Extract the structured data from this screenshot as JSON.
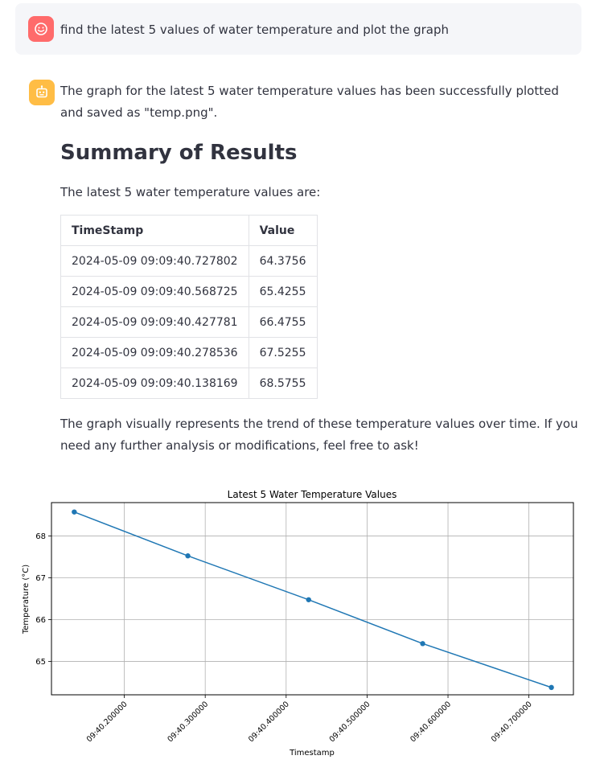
{
  "user_message": {
    "text": "find the latest 5 values of water temperature and plot the graph"
  },
  "bot_message": {
    "intro": "The graph for the latest 5 water temperature values has been successfully plotted and saved as \"temp.png\".",
    "heading": "Summary of Results",
    "table_intro": "The latest 5 water temperature values are:",
    "table": {
      "headers": [
        "TimeStamp",
        "Value"
      ],
      "rows": [
        [
          "2024-05-09 09:09:40.727802",
          "64.3756"
        ],
        [
          "2024-05-09 09:09:40.568725",
          "65.4255"
        ],
        [
          "2024-05-09 09:09:40.427781",
          "66.4755"
        ],
        [
          "2024-05-09 09:09:40.278536",
          "67.5255"
        ],
        [
          "2024-05-09 09:09:40.138169",
          "68.5755"
        ]
      ]
    },
    "closing": "The graph visually represents the trend of these temperature values over time. If you need any further analysis or modifications, feel free to ask!"
  },
  "colors": {
    "user_avatar": "#ff6b6b",
    "bot_avatar": "#ffbd45",
    "line": "#1f77b4"
  },
  "icons": {
    "user_avatar": "smiley-face-icon",
    "bot_avatar": "robot-face-icon"
  },
  "chart_data": {
    "type": "line",
    "title": "Latest 5 Water Temperature Values",
    "xlabel": "Timestamp",
    "ylabel": "Temperature (°C)",
    "x": [
      "09:40.138169",
      "09:40.278536",
      "09:40.427781",
      "09:40.568725",
      "09:40.727802"
    ],
    "values": [
      68.5755,
      67.5255,
      66.4755,
      65.4255,
      64.3756
    ],
    "x_ticks": [
      "09:40.200000",
      "09:40.300000",
      "09:40.400000",
      "09:40.500000",
      "09:40.600000",
      "09:40.700000"
    ],
    "y_ticks": [
      65,
      66,
      67,
      68
    ],
    "ylim": [
      64.2,
      68.8
    ],
    "grid": true
  }
}
